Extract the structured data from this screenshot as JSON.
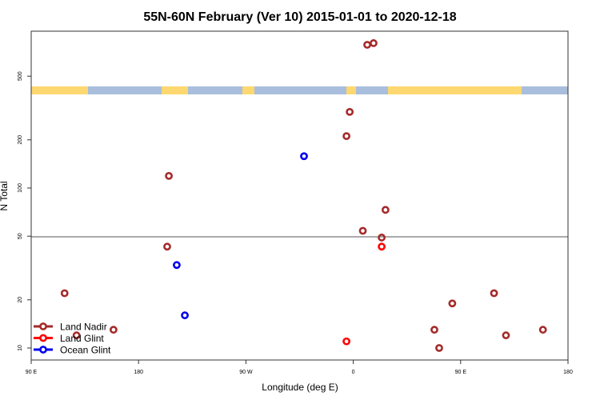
{
  "chart_data": {
    "type": "scatter",
    "title": "55N-60N February (Ver 10)   2015-01-01 to 2020-12-18",
    "xlabel": "Longitude (deg E)",
    "ylabel": "N Total",
    "x_ticks": [
      {
        "value": 90,
        "label": "90 E"
      },
      {
        "value": 180,
        "label": "180"
      },
      {
        "value": 270,
        "label": "90 W"
      },
      {
        "value": 360,
        "label": "0"
      },
      {
        "value": 450,
        "label": "90 E"
      },
      {
        "value": 540,
        "label": "180"
      }
    ],
    "xlim": [
      "90 E",
      "180"
    ],
    "y_scale": "log",
    "y_ticks": [
      10,
      20,
      50,
      100,
      200,
      500
    ],
    "ylim": [
      8.4,
      955
    ],
    "reference_line": 50,
    "grid": false,
    "legend_position": "bottom-left",
    "colors": {
      "land_nadir": "#a52a2a",
      "land_glint": "#ff0000",
      "ocean_glint": "#0000ee",
      "land": "#fdd870",
      "ocean": "#a8bedc"
    },
    "series": [
      {
        "name": "Land Nadir",
        "color": "#a52a2a",
        "points": [
          {
            "lon": 11.7,
            "n": 785
          },
          {
            "lon": 17,
            "n": 804
          },
          {
            "lon": -3,
            "n": 299
          },
          {
            "lon": -5.7,
            "n": 211
          },
          {
            "lon": -154.6,
            "n": 119
          },
          {
            "lon": 27,
            "n": 73
          },
          {
            "lon": 8,
            "n": 54
          },
          {
            "lon": 23.8,
            "n": 49
          },
          {
            "lon": -156,
            "n": 43
          },
          {
            "lon": 118,
            "n": 22
          },
          {
            "lon": 128,
            "n": 12
          },
          {
            "lon": 159,
            "n": 13
          },
          {
            "lon": 83,
            "n": 19
          },
          {
            "lon": 68,
            "n": 13
          },
          {
            "lon": 72,
            "n": 10
          }
        ]
      },
      {
        "name": "Land Glint",
        "color": "#ff0000",
        "points": [
          {
            "lon": 23.8,
            "n": 43
          },
          {
            "lon": -5.7,
            "n": 11
          }
        ]
      },
      {
        "name": "Ocean Glint",
        "color": "#0000ee",
        "points": [
          {
            "lon": -41.3,
            "n": 158
          },
          {
            "lon": -148,
            "n": 33
          },
          {
            "lon": -141.2,
            "n": 16
          }
        ]
      }
    ]
  }
}
